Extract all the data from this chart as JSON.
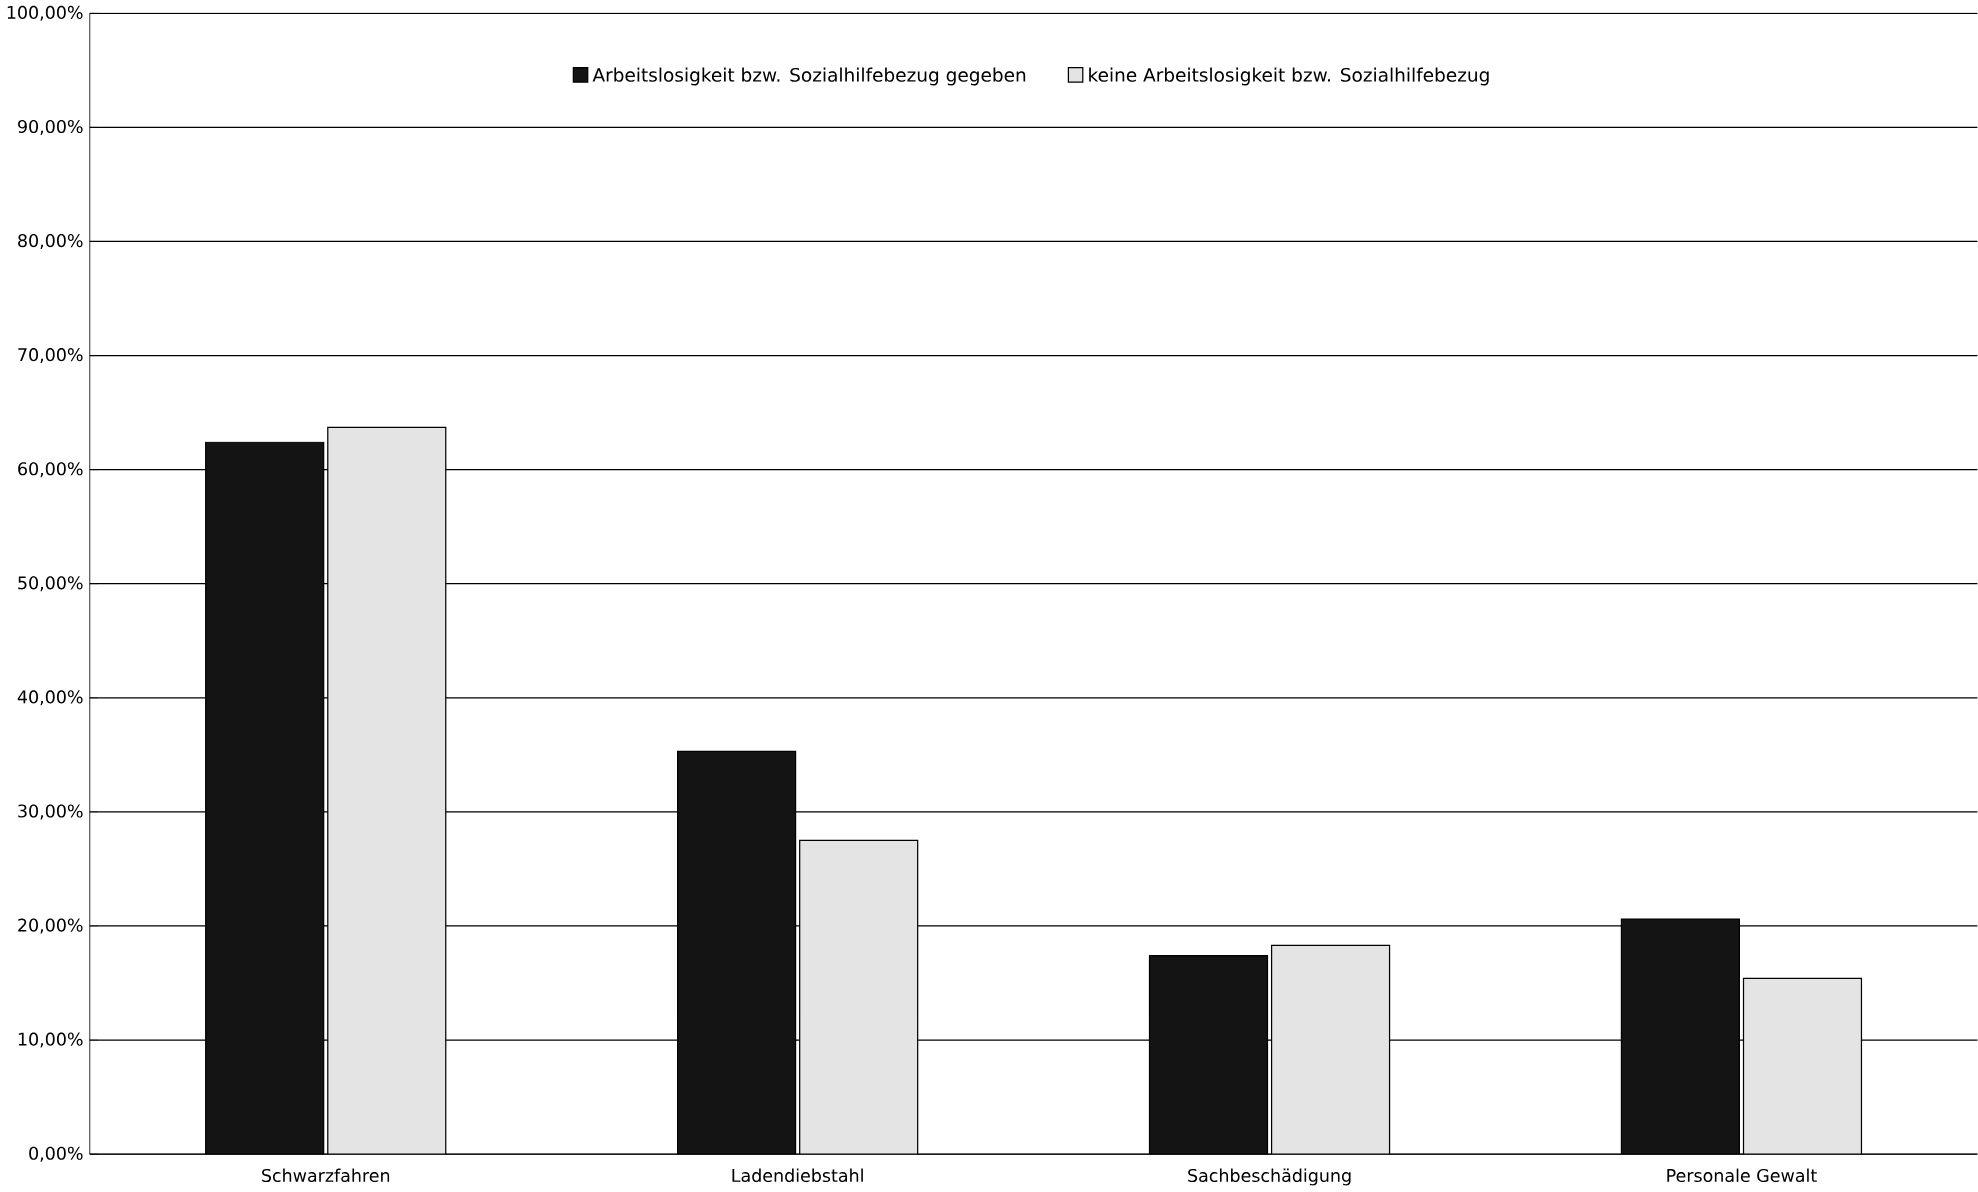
{
  "chart_data": {
    "type": "bar",
    "categories": [
      "Schwarzfahren",
      "Ladendiebstahl",
      "Sachbeschädigung",
      "Personale Gewalt"
    ],
    "series": [
      {
        "name": "Arbeitslosigkeit bzw. Sozialhilfebezug gegeben",
        "color": "#141414",
        "values": [
          62.4,
          35.3,
          17.4,
          20.6
        ]
      },
      {
        "name": "keine Arbeitslosigkeit bzw. Sozialhilfebezug",
        "color": "#e4e4e4",
        "values": [
          63.7,
          27.5,
          18.3,
          15.4
        ]
      }
    ],
    "ylim": [
      0,
      100
    ],
    "yticks": [
      {
        "value": 0,
        "label": "0,00%"
      },
      {
        "value": 10,
        "label": "10,00%"
      },
      {
        "value": 20,
        "label": "20,00%"
      },
      {
        "value": 30,
        "label": "30,00%"
      },
      {
        "value": 40,
        "label": "40,00%"
      },
      {
        "value": 50,
        "label": "50,00%"
      },
      {
        "value": 60,
        "label": "60,00%"
      },
      {
        "value": 70,
        "label": "70,00%"
      },
      {
        "value": 80,
        "label": "80,00%"
      },
      {
        "value": 90,
        "label": "90,00%"
      },
      {
        "value": 100,
        "label": "100,00%"
      }
    ],
    "grid": "y",
    "legend": "top"
  }
}
